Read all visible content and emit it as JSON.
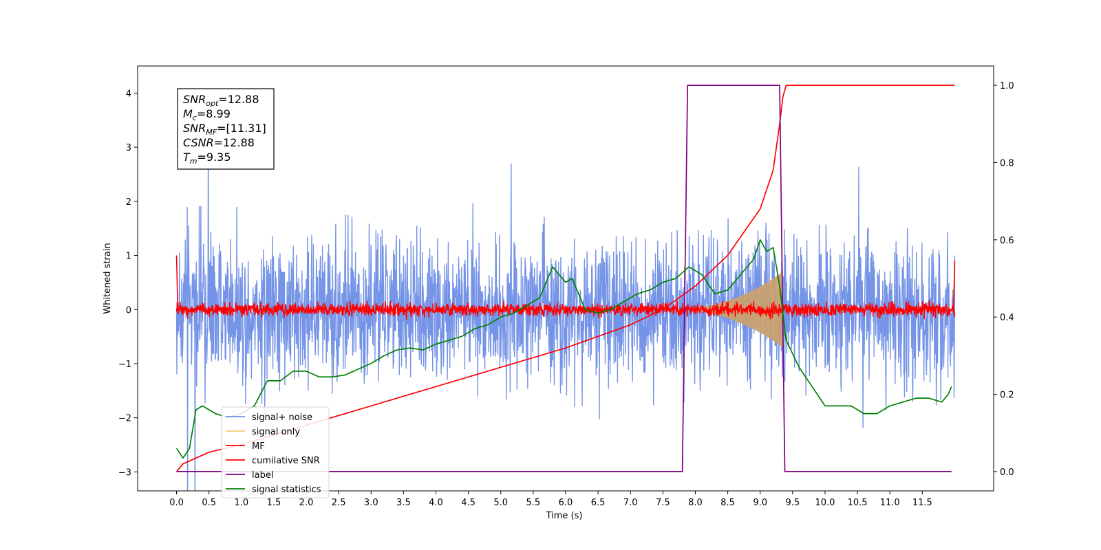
{
  "chart_data": {
    "type": "line",
    "title": "",
    "xlabel": "Time (s)",
    "ylabel": "Whitened strain",
    "ylabel_right": "",
    "xlim": [
      -0.6,
      12.6
    ],
    "ylim": [
      -3.35,
      4.5
    ],
    "ylim_right": [
      -0.05,
      1.05
    ],
    "x_ticks": [
      "0.0",
      "0.5",
      "1.0",
      "1.5",
      "2.0",
      "2.5",
      "3.0",
      "3.5",
      "4.0",
      "4.5",
      "5.0",
      "5.5",
      "6.0",
      "6.5",
      "7.0",
      "7.5",
      "8.0",
      "8.5",
      "9.0",
      "9.5",
      "10.0",
      "10.5",
      "11.0",
      "11.5"
    ],
    "y_ticks_left": [
      "−3",
      "−2",
      "−1",
      "0",
      "1",
      "2",
      "3",
      "4"
    ],
    "y_ticks_right": [
      "0.0",
      "0.2",
      "0.4",
      "0.6",
      "0.8",
      "1.0"
    ],
    "grid": false,
    "legend_position": "lower-left",
    "annotation": {
      "lines": [
        {
          "sym": "SNR",
          "sub": "opt",
          "val": "=12.88"
        },
        {
          "sym": "M",
          "sub": "c",
          "val": "=8.99"
        },
        {
          "sym": "SNR",
          "sub": "MF",
          "val": "=[11.31]"
        },
        {
          "sym": "CSNR",
          "sub": "",
          "val": "=12.88"
        },
        {
          "sym": "T",
          "sub": "m",
          "val": "=9.35"
        }
      ]
    },
    "series": [
      {
        "name": "signal+ noise",
        "axis": "left",
        "color": "#6e8ee6",
        "kind": "noise",
        "amplitude": 0.9,
        "sample_dt": 0.005,
        "x_range": [
          0.0,
          12.0
        ]
      },
      {
        "name": "signal only",
        "axis": "left",
        "color": "#f5c97a",
        "kind": "chirp_envelope",
        "x_range": [
          7.6,
          9.35
        ],
        "amplitude_at_end": 0.7
      },
      {
        "name": "MF",
        "axis": "left",
        "color": "#ff0000",
        "kind": "noise",
        "amplitude": 0.08,
        "sample_dt": 0.005,
        "x_range": [
          0.0,
          12.0
        ]
      },
      {
        "name": "cumilative SNR",
        "axis": "right",
        "color": "#ff0000",
        "x": [
          0.0,
          0.1,
          0.5,
          1.0,
          1.5,
          2.0,
          2.5,
          3.0,
          3.5,
          4.0,
          4.5,
          5.0,
          5.5,
          6.0,
          6.5,
          7.0,
          7.5,
          8.0,
          8.5,
          9.0,
          9.2,
          9.3,
          9.35,
          9.4,
          12.0
        ],
        "y": [
          0.0,
          0.02,
          0.05,
          0.07,
          0.095,
          0.12,
          0.145,
          0.17,
          0.195,
          0.22,
          0.245,
          0.27,
          0.295,
          0.32,
          0.35,
          0.38,
          0.42,
          0.48,
          0.56,
          0.68,
          0.78,
          0.9,
          0.97,
          1.0,
          1.0
        ]
      },
      {
        "name": "label",
        "axis": "right",
        "color": "#800080",
        "x": [
          0.0,
          7.8,
          7.88,
          9.3,
          9.38,
          11.95
        ],
        "y": [
          0.0,
          0.0,
          1.0,
          1.0,
          0.0,
          0.0
        ]
      },
      {
        "name": "signal statistics",
        "axis": "right",
        "color": "#008000",
        "x": [
          0.0,
          0.1,
          0.2,
          0.3,
          0.4,
          0.6,
          0.8,
          1.0,
          1.2,
          1.4,
          1.6,
          1.8,
          2.0,
          2.2,
          2.4,
          2.6,
          2.8,
          3.0,
          3.2,
          3.4,
          3.6,
          3.8,
          4.0,
          4.2,
          4.4,
          4.6,
          4.8,
          5.0,
          5.2,
          5.4,
          5.6,
          5.8,
          6.0,
          6.1,
          6.3,
          6.5,
          6.7,
          6.9,
          7.1,
          7.3,
          7.5,
          7.7,
          7.9,
          8.1,
          8.3,
          8.5,
          8.7,
          8.9,
          9.0,
          9.1,
          9.2,
          9.3,
          9.4,
          9.6,
          9.8,
          10.0,
          10.2,
          10.4,
          10.6,
          10.8,
          11.0,
          11.2,
          11.4,
          11.6,
          11.8,
          11.9,
          11.95
        ],
        "y": [
          0.06,
          0.035,
          0.06,
          0.16,
          0.17,
          0.15,
          0.14,
          0.15,
          0.17,
          0.235,
          0.235,
          0.26,
          0.26,
          0.245,
          0.245,
          0.25,
          0.265,
          0.28,
          0.3,
          0.315,
          0.32,
          0.315,
          0.33,
          0.34,
          0.35,
          0.37,
          0.38,
          0.4,
          0.41,
          0.43,
          0.45,
          0.53,
          0.49,
          0.5,
          0.42,
          0.41,
          0.42,
          0.44,
          0.46,
          0.47,
          0.49,
          0.5,
          0.53,
          0.51,
          0.46,
          0.47,
          0.51,
          0.55,
          0.6,
          0.57,
          0.58,
          0.48,
          0.34,
          0.27,
          0.22,
          0.17,
          0.17,
          0.17,
          0.15,
          0.15,
          0.17,
          0.18,
          0.19,
          0.19,
          0.18,
          0.2,
          0.22
        ]
      }
    ]
  }
}
